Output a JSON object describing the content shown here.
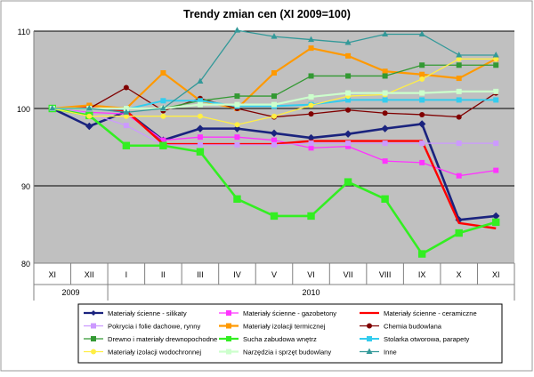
{
  "chart_data": {
    "type": "line",
    "title": "Trendy zmian cen (XI 2009=100)",
    "categories": [
      "XI",
      "XII",
      "I",
      "II",
      "III",
      "IV",
      "V",
      "VI",
      "VII",
      "VIII",
      "IX",
      "X",
      "XI"
    ],
    "years": [
      {
        "label": "2009",
        "from": 0,
        "to": 1
      },
      {
        "label": "2010",
        "from": 2,
        "to": 12
      }
    ],
    "ylim": [
      80,
      110
    ],
    "yticks": [
      80,
      90,
      100,
      110
    ],
    "grid": true,
    "legend_position": "bottom",
    "series": [
      {
        "name": "Materiały ścienne - silikaty",
        "color": "#1a237e",
        "marker": "diamond",
        "width": 2.6,
        "values": [
          100,
          97.7,
          99.6,
          95.9,
          97.4,
          97.4,
          96.8,
          96.2,
          96.7,
          97.4,
          98.0,
          85.6,
          86.1
        ]
      },
      {
        "name": "Materiały ścienne - gazobetony",
        "color": "#ff33ff",
        "marker": "square",
        "width": 1.3,
        "values": [
          100,
          99.5,
          99.3,
          95.9,
          96.3,
          96.3,
          95.9,
          94.9,
          95.1,
          93.2,
          93.0,
          91.3,
          92.0
        ]
      },
      {
        "name": "Materiały ścienne - ceramiczne",
        "color": "#ff0000",
        "marker": "none",
        "width": 2.4,
        "values": [
          100,
          100.1,
          99.7,
          95.4,
          95.4,
          95.4,
          95.4,
          95.8,
          95.8,
          95.8,
          95.8,
          85.2,
          84.5
        ]
      },
      {
        "name": "Pokrycia i folie dachowe, rynny",
        "color": "#cc99ff",
        "marker": "square",
        "width": 1.3,
        "values": [
          100,
          99.4,
          97.8,
          95.3,
          95.3,
          95.3,
          95.3,
          95.5,
          95.5,
          95.5,
          95.5,
          95.5,
          95.5
        ]
      },
      {
        "name": "Materiały izolacji termicznej",
        "color": "#ff9900",
        "marker": "square",
        "width": 2.2,
        "values": [
          100,
          100.4,
          100.0,
          104.6,
          101.0,
          100.0,
          104.6,
          107.8,
          106.8,
          104.8,
          104.4,
          103.9,
          106.4
        ]
      },
      {
        "name": "Chemia budowlana",
        "color": "#800000",
        "marker": "circle",
        "width": 1.3,
        "values": [
          100,
          100.0,
          102.7,
          99.7,
          101.3,
          100.0,
          98.9,
          99.3,
          99.8,
          99.4,
          99.2,
          98.9,
          102.0
        ]
      },
      {
        "name": "Drewno i materiały drewnopochodne",
        "color": "#339933",
        "marker": "square",
        "width": 1.3,
        "values": [
          100,
          100.0,
          100.0,
          100.0,
          101.0,
          101.6,
          101.6,
          104.2,
          104.2,
          104.2,
          105.6,
          105.6,
          105.6
        ]
      },
      {
        "name": "Sucha zabudowa wnętrz",
        "color": "#33ee22",
        "marker": "square",
        "width": 2.6,
        "values": [
          100,
          99.1,
          95.2,
          95.2,
          94.4,
          88.3,
          86.1,
          86.1,
          90.5,
          88.3,
          81.2,
          83.9,
          85.3
        ]
      },
      {
        "name": "Stolarka otworowa, parapety",
        "color": "#33ccee",
        "marker": "square",
        "width": 2.0,
        "values": [
          100,
          100.0,
          99.9,
          101.0,
          101.0,
          100.3,
          100.3,
          100.5,
          101.1,
          101.1,
          101.1,
          101.1,
          101.1
        ]
      },
      {
        "name": "Materiały izolacji wodochronnej",
        "color": "#ffee44",
        "marker": "circle",
        "width": 1.3,
        "values": [
          100,
          99.0,
          99.0,
          99.0,
          99.0,
          97.9,
          99.0,
          100.4,
          101.6,
          101.8,
          103.8,
          106.4,
          106.4
        ]
      },
      {
        "name": "Narzędzia i sprzęt budowlany",
        "color": "#ccffcc",
        "marker": "square",
        "width": 2.2,
        "values": [
          100,
          100.0,
          100.0,
          100.0,
          100.5,
          100.5,
          100.5,
          101.5,
          102.0,
          102.0,
          102.0,
          102.2,
          102.2
        ]
      },
      {
        "name": "Inne",
        "color": "#339999",
        "marker": "triangle",
        "width": 1.3,
        "values": [
          100,
          100.0,
          99.5,
          100.0,
          103.5,
          110.1,
          109.3,
          108.9,
          108.5,
          109.6,
          109.6,
          106.9,
          106.9
        ]
      }
    ]
  }
}
